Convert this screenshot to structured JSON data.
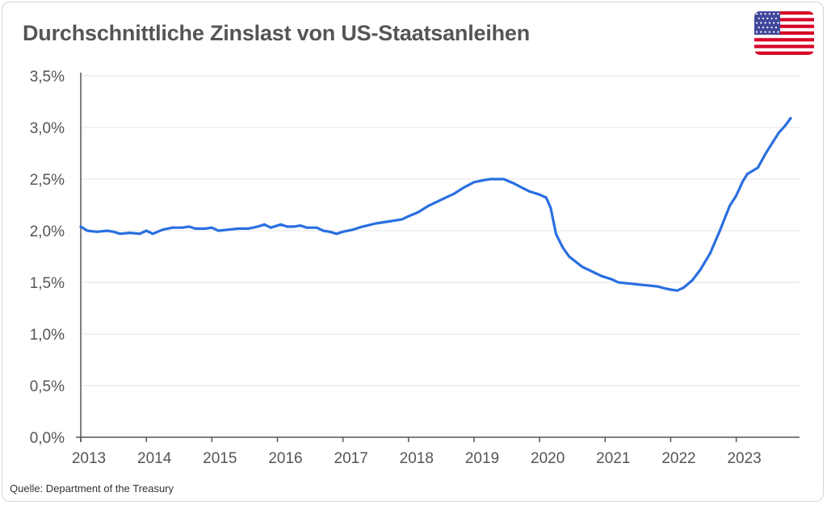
{
  "title": "Durchschnittliche Zinslast von US-Staatsanleihen",
  "source": "Quelle: Department of the Treasury",
  "flag_icon": "us-flag-icon",
  "colors": {
    "line": "#2a6fe0",
    "grid": "#e3e3e3",
    "text": "#555555"
  },
  "chart_data": {
    "type": "line",
    "title": "Durchschnittliche Zinslast von US-Staatsanleihen",
    "xlabel": "",
    "ylabel": "",
    "xlim": [
      2013.0,
      2023.83
    ],
    "ylim": [
      0,
      3.5
    ],
    "y_ticks": [
      {
        "value": 0.0,
        "label": "0,0%"
      },
      {
        "value": 0.5,
        "label": "0,5%"
      },
      {
        "value": 1.0,
        "label": "1,0%"
      },
      {
        "value": 1.5,
        "label": "1,5%"
      },
      {
        "value": 2.0,
        "label": "2,0%"
      },
      {
        "value": 2.5,
        "label": "2,5%"
      },
      {
        "value": 3.0,
        "label": "3,0%"
      },
      {
        "value": 3.5,
        "label": "3,5%"
      }
    ],
    "x_ticks": [
      {
        "value": 2013,
        "label": "2013"
      },
      {
        "value": 2014,
        "label": "2014"
      },
      {
        "value": 2015,
        "label": "2015"
      },
      {
        "value": 2016,
        "label": "2016"
      },
      {
        "value": 2017,
        "label": "2017"
      },
      {
        "value": 2018,
        "label": "2018"
      },
      {
        "value": 2019,
        "label": "2019"
      },
      {
        "value": 2020,
        "label": "2020"
      },
      {
        "value": 2021,
        "label": "2021"
      },
      {
        "value": 2022,
        "label": "2022"
      },
      {
        "value": 2023,
        "label": "2023"
      }
    ],
    "grid": true,
    "series": [
      {
        "values": [
          [
            2013.0,
            2.04
          ],
          [
            2013.1,
            2.0
          ],
          [
            2013.25,
            1.99
          ],
          [
            2013.4,
            2.0
          ],
          [
            2013.5,
            1.99
          ],
          [
            2013.6,
            1.97
          ],
          [
            2013.75,
            1.98
          ],
          [
            2013.9,
            1.97
          ],
          [
            2014.0,
            2.0
          ],
          [
            2014.1,
            1.97
          ],
          [
            2014.25,
            2.01
          ],
          [
            2014.4,
            2.03
          ],
          [
            2014.55,
            2.03
          ],
          [
            2014.65,
            2.04
          ],
          [
            2014.75,
            2.02
          ],
          [
            2014.9,
            2.02
          ],
          [
            2015.0,
            2.03
          ],
          [
            2015.1,
            2.0
          ],
          [
            2015.25,
            2.01
          ],
          [
            2015.4,
            2.02
          ],
          [
            2015.55,
            2.02
          ],
          [
            2015.7,
            2.04
          ],
          [
            2015.8,
            2.06
          ],
          [
            2015.9,
            2.03
          ],
          [
            2016.05,
            2.06
          ],
          [
            2016.15,
            2.04
          ],
          [
            2016.25,
            2.04
          ],
          [
            2016.35,
            2.05
          ],
          [
            2016.45,
            2.03
          ],
          [
            2016.6,
            2.03
          ],
          [
            2016.7,
            2.0
          ],
          [
            2016.8,
            1.99
          ],
          [
            2016.9,
            1.97
          ],
          [
            2017.0,
            1.99
          ],
          [
            2017.15,
            2.01
          ],
          [
            2017.3,
            2.04
          ],
          [
            2017.5,
            2.07
          ],
          [
            2017.7,
            2.09
          ],
          [
            2017.9,
            2.11
          ],
          [
            2018.0,
            2.14
          ],
          [
            2018.15,
            2.18
          ],
          [
            2018.3,
            2.24
          ],
          [
            2018.5,
            2.3
          ],
          [
            2018.7,
            2.36
          ],
          [
            2018.85,
            2.42
          ],
          [
            2019.0,
            2.47
          ],
          [
            2019.15,
            2.49
          ],
          [
            2019.25,
            2.5
          ],
          [
            2019.45,
            2.5
          ],
          [
            2019.6,
            2.46
          ],
          [
            2019.75,
            2.41
          ],
          [
            2019.85,
            2.38
          ],
          [
            2020.0,
            2.35
          ],
          [
            2020.1,
            2.32
          ],
          [
            2020.17,
            2.22
          ],
          [
            2020.25,
            1.97
          ],
          [
            2020.35,
            1.84
          ],
          [
            2020.45,
            1.75
          ],
          [
            2020.55,
            1.7
          ],
          [
            2020.65,
            1.65
          ],
          [
            2020.75,
            1.62
          ],
          [
            2020.85,
            1.59
          ],
          [
            2020.95,
            1.56
          ],
          [
            2021.1,
            1.53
          ],
          [
            2021.2,
            1.5
          ],
          [
            2021.35,
            1.49
          ],
          [
            2021.5,
            1.48
          ],
          [
            2021.65,
            1.47
          ],
          [
            2021.8,
            1.46
          ],
          [
            2021.92,
            1.44
          ],
          [
            2022.0,
            1.43
          ],
          [
            2022.1,
            1.42
          ],
          [
            2022.2,
            1.45
          ],
          [
            2022.33,
            1.52
          ],
          [
            2022.45,
            1.62
          ],
          [
            2022.6,
            1.78
          ],
          [
            2022.75,
            2.0
          ],
          [
            2022.9,
            2.24
          ],
          [
            2023.0,
            2.34
          ],
          [
            2023.1,
            2.48
          ],
          [
            2023.17,
            2.55
          ],
          [
            2023.25,
            2.58
          ],
          [
            2023.33,
            2.61
          ],
          [
            2023.45,
            2.75
          ],
          [
            2023.55,
            2.85
          ],
          [
            2023.65,
            2.95
          ],
          [
            2023.75,
            3.02
          ],
          [
            2023.83,
            3.09
          ]
        ]
      }
    ]
  }
}
